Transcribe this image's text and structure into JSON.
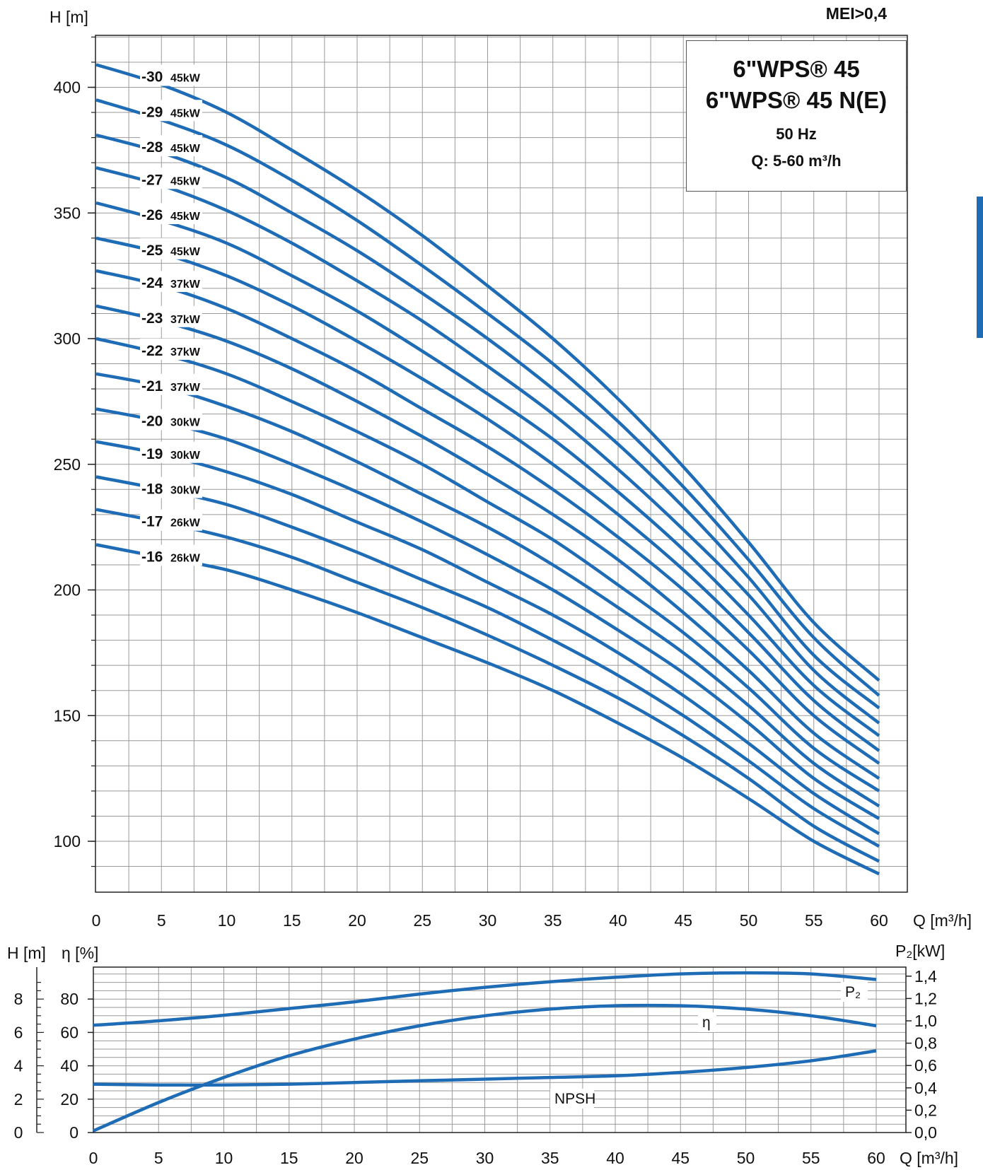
{
  "header": {
    "mei": "MEI>0,4"
  },
  "title_box": {
    "line1": "6\"WPS® 45",
    "line2": "6\"WPS® 45 N(E)",
    "line3": "50 Hz",
    "line4": "Q: 5-60 m³/h"
  },
  "colors": {
    "curve": "#1f6cb6",
    "grid": "#9a9a9a",
    "box_border": "#555555",
    "side_tab": "#1f6cb6"
  },
  "chart_data": [
    {
      "type": "line",
      "title": "",
      "xlabel": "Q [m³/h]",
      "ylabel": "H [m]",
      "xlim": [
        0,
        62
      ],
      "ylim": [
        80,
        420
      ],
      "xticks": [
        0,
        5,
        10,
        15,
        20,
        25,
        30,
        35,
        40,
        45,
        50,
        55,
        60
      ],
      "yticks": [
        100,
        150,
        200,
        250,
        300,
        350,
        400
      ],
      "grid": true,
      "x": [
        0,
        5,
        10,
        15,
        20,
        25,
        30,
        35,
        40,
        45,
        50,
        55,
        60
      ],
      "series": [
        {
          "name": "-16",
          "power": "26kW",
          "values": [
            218,
            213,
            208,
            200,
            191,
            181,
            171,
            160,
            147,
            133,
            117,
            100,
            87
          ]
        },
        {
          "name": "-17",
          "power": "26kW",
          "values": [
            232,
            227,
            221,
            213,
            203,
            193,
            182,
            170,
            157,
            142,
            125,
            106,
            92
          ]
        },
        {
          "name": "-18",
          "power": "30kW",
          "values": [
            245,
            240,
            234,
            225,
            215,
            204,
            193,
            180,
            166,
            150,
            132,
            113,
            98
          ]
        },
        {
          "name": "-19",
          "power": "30kW",
          "values": [
            259,
            254,
            247,
            238,
            227,
            216,
            203,
            190,
            175,
            158,
            139,
            119,
            103
          ]
        },
        {
          "name": "-20",
          "power": "30kW",
          "values": [
            272,
            267,
            260,
            250,
            239,
            227,
            214,
            200,
            184,
            167,
            147,
            125,
            109
          ]
        },
        {
          "name": "-21",
          "power": "37kW",
          "values": [
            286,
            281,
            273,
            263,
            251,
            238,
            225,
            210,
            193,
            175,
            154,
            131,
            114
          ]
        },
        {
          "name": "-22",
          "power": "37kW",
          "values": [
            300,
            294,
            286,
            275,
            263,
            250,
            235,
            220,
            202,
            183,
            161,
            137,
            120
          ]
        },
        {
          "name": "-23",
          "power": "37kW",
          "values": [
            313,
            307,
            299,
            288,
            275,
            261,
            246,
            230,
            212,
            191,
            168,
            143,
            125
          ]
        },
        {
          "name": "-24",
          "power": "37kW",
          "values": [
            327,
            321,
            312,
            300,
            287,
            272,
            257,
            240,
            221,
            200,
            176,
            150,
            131
          ]
        },
        {
          "name": "-25",
          "power": "45kW",
          "values": [
            340,
            334,
            325,
            313,
            299,
            284,
            268,
            250,
            230,
            208,
            183,
            156,
            136
          ]
        },
        {
          "name": "-26",
          "power": "45kW",
          "values": [
            354,
            347,
            338,
            325,
            311,
            295,
            278,
            260,
            239,
            216,
            190,
            162,
            142
          ]
        },
        {
          "name": "-27",
          "power": "45kW",
          "values": [
            368,
            361,
            351,
            338,
            323,
            307,
            289,
            270,
            248,
            224,
            198,
            168,
            147
          ]
        },
        {
          "name": "-28",
          "power": "45kW",
          "values": [
            381,
            374,
            364,
            350,
            335,
            318,
            300,
            280,
            258,
            233,
            205,
            174,
            153
          ]
        },
        {
          "name": "-29",
          "power": "45kW",
          "values": [
            395,
            387,
            377,
            363,
            347,
            329,
            310,
            290,
            267,
            241,
            212,
            181,
            158
          ]
        },
        {
          "name": "-30",
          "power": "45kW",
          "values": [
            409,
            401,
            390,
            375,
            359,
            341,
            321,
            300,
            276,
            249,
            219,
            187,
            164
          ]
        }
      ]
    },
    {
      "type": "line",
      "title": "",
      "xlabel": "Q [m³/h]",
      "ylabel_left_outer": "H [m]",
      "ylabel_left_inner": "η [%]",
      "ylabel_right": "P₂[kW]",
      "xlim": [
        0,
        62
      ],
      "xticks": [
        0,
        5,
        10,
        15,
        20,
        25,
        30,
        35,
        40,
        45,
        50,
        55,
        60
      ],
      "yticks_h": [
        0,
        2,
        4,
        6,
        8
      ],
      "yticks_eta": [
        0,
        20,
        40,
        60,
        80
      ],
      "yticks_p2": [
        "0,0",
        "0,2",
        "0,4",
        "0,6",
        "0,8",
        "1,0",
        "1,2",
        "1,4"
      ],
      "ylim_eta": [
        0,
        97
      ],
      "grid": true,
      "x": [
        0,
        5,
        10,
        15,
        20,
        25,
        30,
        35,
        40,
        45,
        50,
        55,
        60
      ],
      "series": [
        {
          "name": "P₂",
          "unit": "kW",
          "values": [
            0.96,
            1.0,
            1.05,
            1.11,
            1.17,
            1.24,
            1.3,
            1.35,
            1.39,
            1.42,
            1.43,
            1.42,
            1.37
          ]
        },
        {
          "name": "η",
          "unit": "%",
          "values": [
            1,
            18,
            33,
            46,
            56,
            64,
            70,
            74,
            76,
            76,
            74,
            70,
            64
          ]
        },
        {
          "name": "NPSH",
          "unit": "m",
          "values": [
            2.9,
            2.85,
            2.85,
            2.9,
            3.0,
            3.1,
            3.2,
            3.3,
            3.4,
            3.6,
            3.9,
            4.3,
            4.9
          ]
        }
      ]
    }
  ]
}
